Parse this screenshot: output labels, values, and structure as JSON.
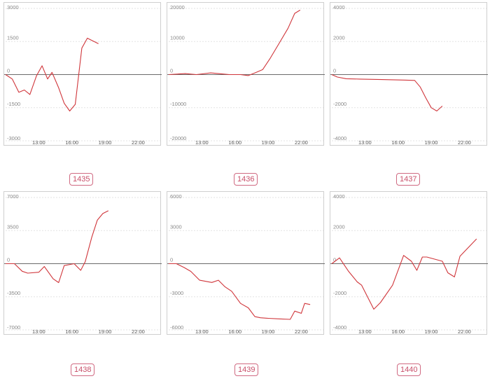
{
  "line_color": "#d0363b",
  "zero_line_color": "#6b6b6b",
  "grid_color": "#e3e3e3",
  "label_color": "#c8506a",
  "chart_data": [
    {
      "type": "line",
      "name": "1435",
      "ylim": [
        -3000,
        3000
      ],
      "xlim": [
        10,
        24
      ],
      "y_ticks": [
        3000,
        1500,
        0,
        -1500,
        -3000
      ],
      "x_ticks": [
        "13:00",
        "16:00",
        "19:00",
        "22:00"
      ],
      "x_tick_values": [
        13,
        16,
        19,
        22
      ],
      "x": [
        10.0,
        10.6,
        11.2,
        11.7,
        12.2,
        12.8,
        13.3,
        13.8,
        14.2,
        14.8,
        15.3,
        15.8,
        16.3,
        16.9,
        17.4,
        18.4
      ],
      "y": [
        0,
        -200,
        -800,
        -700,
        -900,
        -50,
        400,
        -200,
        100,
        -600,
        -1300,
        -1650,
        -1350,
        1200,
        1650,
        1400
      ]
    },
    {
      "type": "line",
      "name": "1436",
      "ylim": [
        -20000,
        20000
      ],
      "xlim": [
        10,
        24
      ],
      "y_ticks": [
        20000,
        10000,
        0,
        -10000,
        -20000
      ],
      "x_ticks": [
        "13:00",
        "16:00",
        "19:00",
        "22:00"
      ],
      "x_tick_values": [
        13,
        16,
        19,
        22
      ],
      "x": [
        10.0,
        11.5,
        12.5,
        13.8,
        14.5,
        15.5,
        16.5,
        17.2,
        17.8,
        18.5,
        19.2,
        20.0,
        20.8,
        21.4,
        21.9
      ],
      "y": [
        0,
        300,
        0,
        500,
        300,
        0,
        0,
        -300,
        500,
        1500,
        5000,
        9500,
        14000,
        18500,
        19500
      ]
    },
    {
      "type": "line",
      "name": "1437",
      "ylim": [
        -4000,
        4000
      ],
      "xlim": [
        10,
        24
      ],
      "y_ticks": [
        4000,
        2000,
        0,
        -2000,
        -4000
      ],
      "x_ticks": [
        "13:00",
        "16:00",
        "19:00",
        "22:00"
      ],
      "x_tick_values": [
        13,
        16,
        19,
        22
      ],
      "x": [
        10.0,
        10.5,
        11.3,
        12.5,
        14.5,
        16.5,
        17.5,
        18.0,
        18.5,
        19.0,
        19.5,
        20.0
      ],
      "y": [
        0,
        -150,
        -250,
        -270,
        -300,
        -330,
        -350,
        -750,
        -1400,
        -2000,
        -2200,
        -1900
      ]
    },
    {
      "type": "line",
      "name": "1438",
      "ylim": [
        -7000,
        7000
      ],
      "xlim": [
        10,
        24
      ],
      "y_ticks": [
        7000,
        3500,
        0,
        -3500,
        -7000
      ],
      "x_ticks": [
        "13:00",
        "16:00",
        "19:00",
        "22:00"
      ],
      "x_tick_values": [
        13,
        16,
        19,
        22
      ],
      "x": [
        10.0,
        10.8,
        11.5,
        12.0,
        13.0,
        13.5,
        14.3,
        14.8,
        15.3,
        16.2,
        16.8,
        17.2,
        17.8,
        18.3,
        18.8,
        19.3
      ],
      "y": [
        0,
        0,
        -800,
        -1000,
        -900,
        -300,
        -1600,
        -2000,
        -200,
        0,
        -700,
        200,
        2800,
        4600,
        5300,
        5600
      ]
    },
    {
      "type": "line",
      "name": "1439",
      "ylim": [
        -6000,
        6000
      ],
      "xlim": [
        10,
        24
      ],
      "y_ticks": [
        6000,
        3000,
        0,
        -3000,
        -6000
      ],
      "x_ticks": [
        "13:00",
        "16:00",
        "19:00",
        "22:00"
      ],
      "x_tick_values": [
        13,
        16,
        19,
        22
      ],
      "x": [
        10.0,
        10.7,
        11.4,
        12.0,
        12.8,
        13.9,
        14.5,
        15.1,
        15.7,
        16.5,
        17.2,
        17.8,
        18.3,
        19.0,
        20.0,
        21.0,
        21.4,
        22.0,
        22.3,
        22.8
      ],
      "y": [
        0,
        0,
        -350,
        -700,
        -1500,
        -1700,
        -1500,
        -2100,
        -2500,
        -3600,
        -4000,
        -4800,
        -4900,
        -4950,
        -5000,
        -5050,
        -4300,
        -4500,
        -3600,
        -3700
      ]
    },
    {
      "type": "line",
      "name": "1440",
      "ylim": [
        -4000,
        4000
      ],
      "xlim": [
        10,
        24
      ],
      "y_ticks": [
        4000,
        2000,
        0,
        -2000,
        -4000
      ],
      "x_ticks": [
        "13:00",
        "16:00",
        "19:00",
        "22:00"
      ],
      "x_tick_values": [
        13,
        16,
        19,
        22
      ],
      "x": [
        10.0,
        10.7,
        11.5,
        12.3,
        12.7,
        13.8,
        14.4,
        15.5,
        16.5,
        17.2,
        17.7,
        18.2,
        18.6,
        20.0,
        20.5,
        21.1,
        21.6,
        23.1
      ],
      "y": [
        0,
        350,
        -450,
        -1100,
        -1300,
        -2750,
        -2350,
        -1300,
        500,
        150,
        -400,
        400,
        400,
        150,
        -550,
        -800,
        450,
        1500
      ]
    }
  ]
}
